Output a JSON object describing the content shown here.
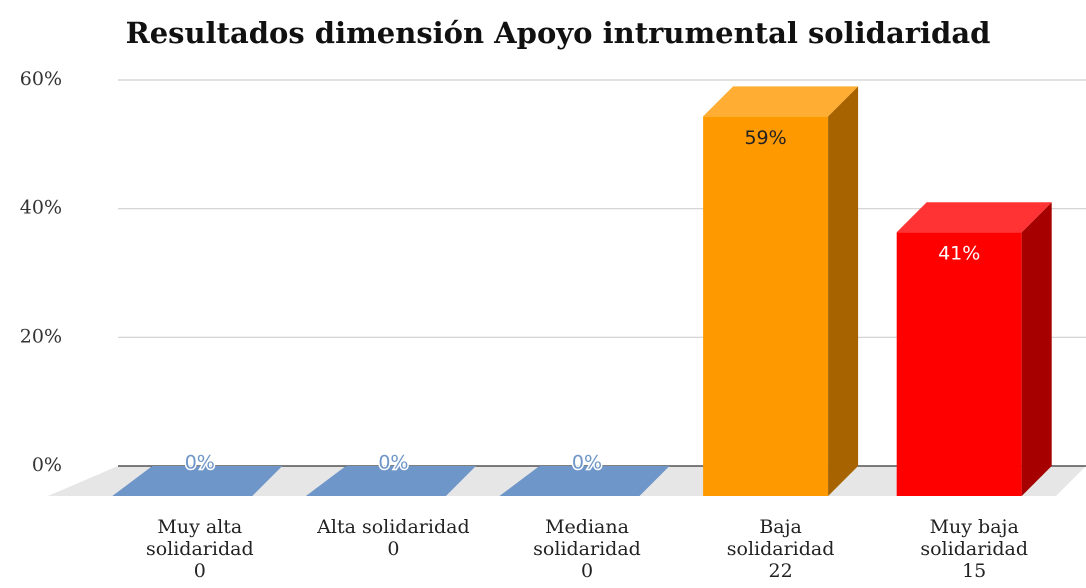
{
  "chart_data": {
    "type": "bar3d",
    "title": "Resultados dimensión Apoyo intrumental solidaridad",
    "categories": [
      "Muy alta\nsolidaridad\n0",
      "Alta solidaridad\n0",
      "Mediana\nsolidaridad\n0",
      "Baja\nsolidaridad\n22",
      "Muy baja\nsolidaridad\n15"
    ],
    "values": [
      0,
      0,
      0,
      59,
      41
    ],
    "value_labels": [
      "0%",
      "0%",
      "0%",
      "59%",
      "41%"
    ],
    "colors": [
      "#6f96c8",
      "#6f96c8",
      "#6f96c8",
      "#ff9900",
      "#ff0000"
    ],
    "value_label_colors": [
      "#6f96c8",
      "#6f96c8",
      "#6f96c8",
      "#222222",
      "#ffffff"
    ],
    "ylim": [
      0,
      60
    ],
    "yticks": [
      {
        "value": 0,
        "label": "0%"
      },
      {
        "value": 20,
        "label": "20%"
      },
      {
        "value": 40,
        "label": "40%"
      },
      {
        "value": 60,
        "label": "60%"
      }
    ],
    "grid": true
  }
}
